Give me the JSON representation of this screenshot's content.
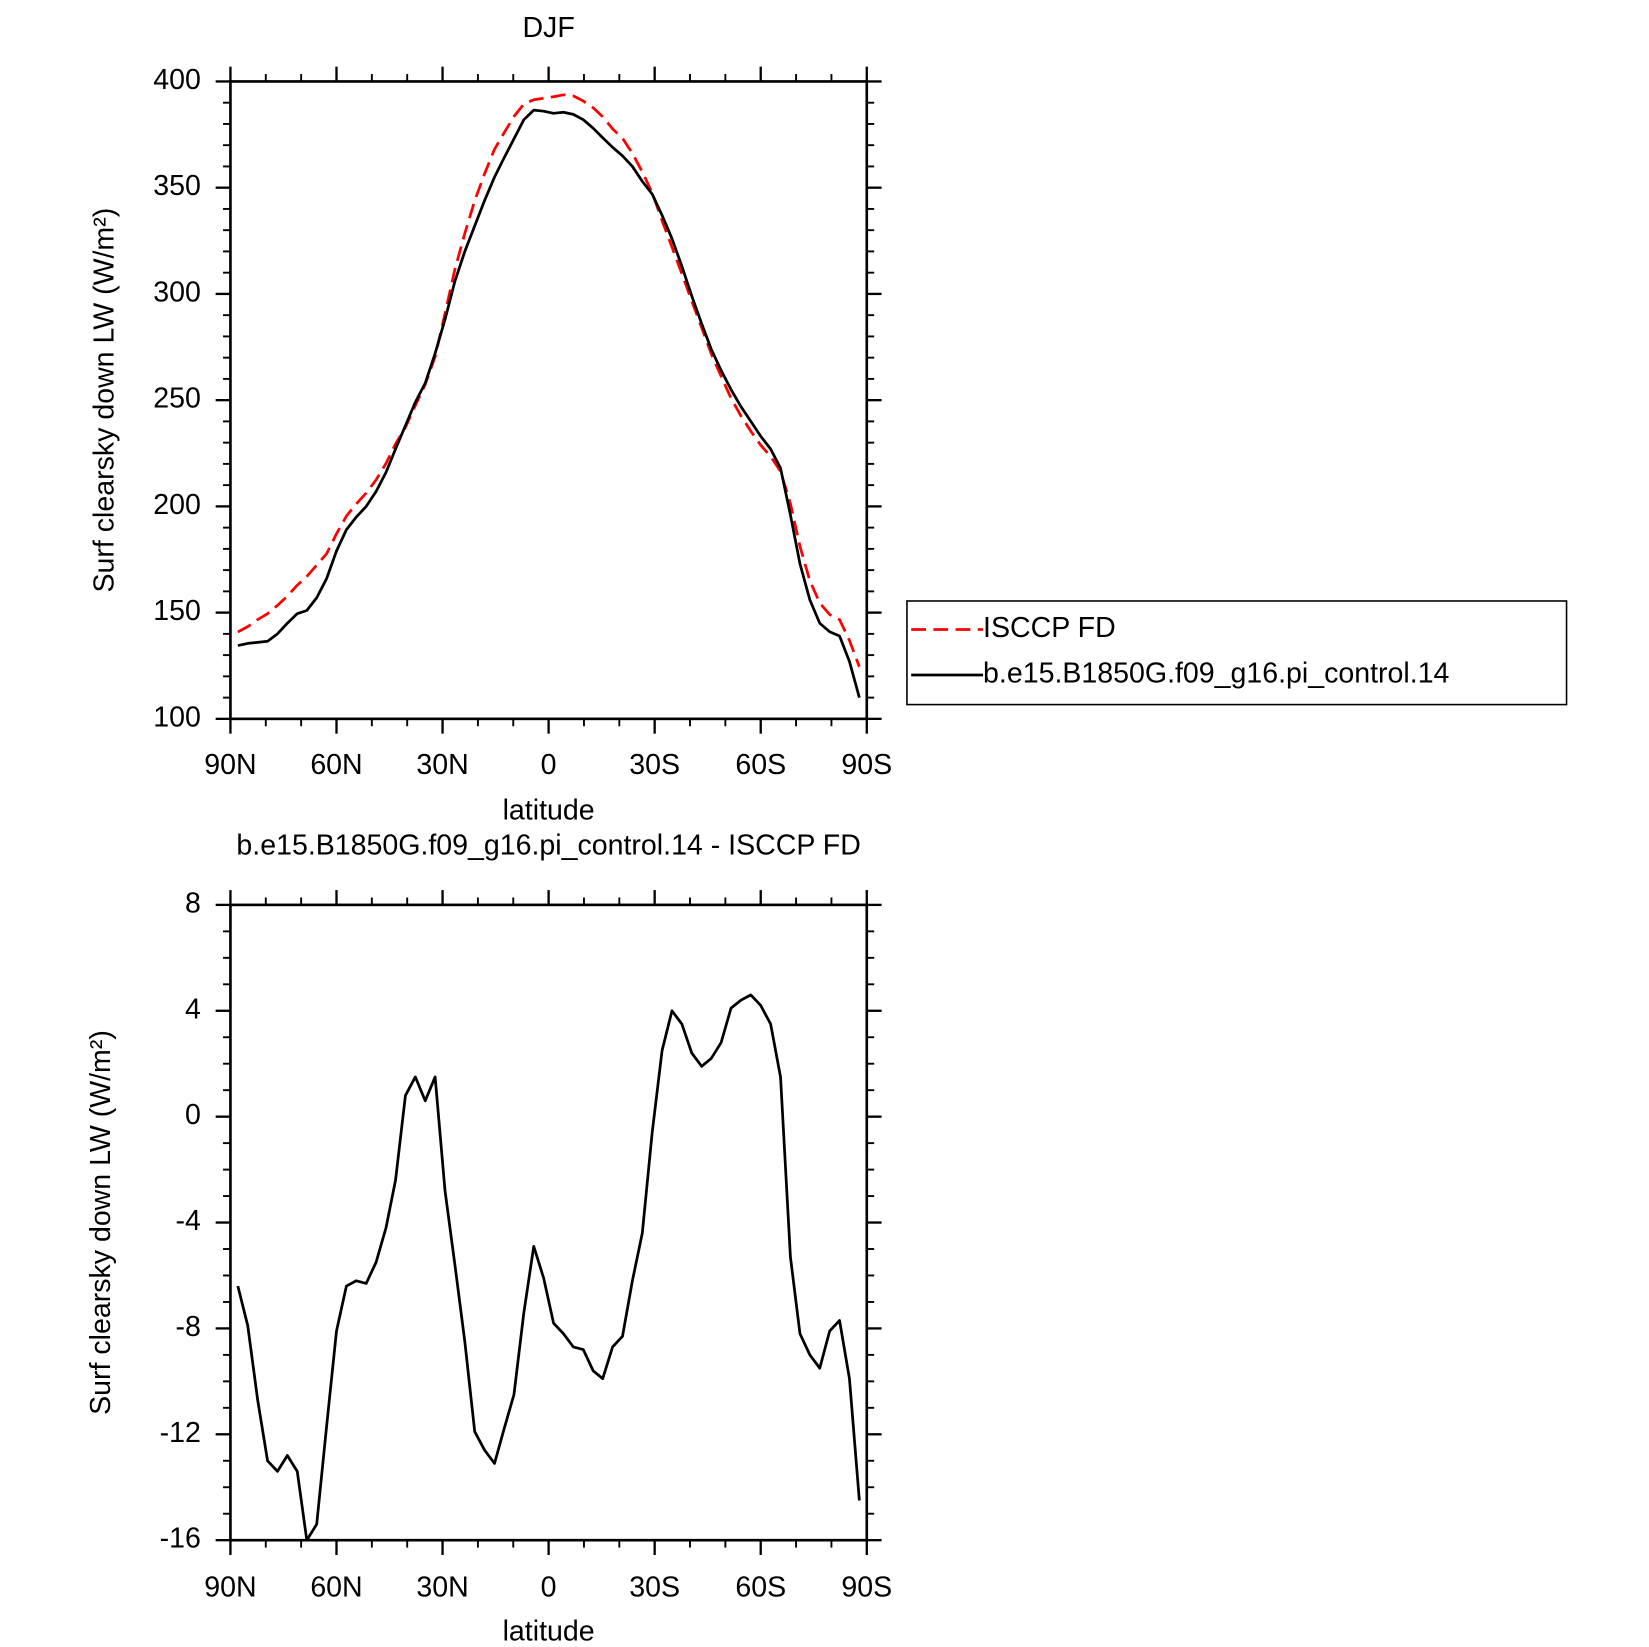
{
  "chart_data": [
    {
      "type": "line",
      "title": "DJF",
      "x_label": "latitude",
      "y_label": "Surf clearsky down LW (W/m²)",
      "x": [
        87.9,
        85.1,
        82.3,
        79.5,
        76.7,
        73.9,
        71.1,
        68.4,
        65.6,
        62.8,
        60.0,
        57.2,
        54.4,
        51.6,
        48.8,
        46.0,
        43.3,
        40.5,
        37.7,
        34.9,
        32.1,
        29.3,
        26.5,
        23.7,
        20.9,
        18.1,
        15.3,
        12.6,
        9.8,
        7.0,
        4.2,
        1.4,
        -1.4,
        -4.2,
        -7.0,
        -9.8,
        -12.6,
        -15.3,
        -18.1,
        -20.9,
        -23.7,
        -26.5,
        -29.3,
        -32.1,
        -34.9,
        -37.7,
        -40.5,
        -43.3,
        -46.0,
        -48.8,
        -51.6,
        -54.4,
        -57.2,
        -60.0,
        -62.8,
        -65.6,
        -68.4,
        -71.1,
        -73.9,
        -76.7,
        -79.5,
        -82.3,
        -85.1,
        -87.9
      ],
      "series": [
        {
          "name": "ISCCP FD",
          "color": "#ff0000",
          "line_style": "dashed",
          "values": [
            140.9,
            143.4,
            146.7,
            149.5,
            153.4,
            157.8,
            162.9,
            167,
            172.4,
            177.7,
            187.1,
            195.4,
            201.2,
            206.3,
            212.5,
            220.2,
            229.4,
            237.2,
            247.5,
            257.4,
            270.5,
            290.8,
            311.6,
            328.5,
            343.9,
            356.6,
            368.1,
            375.8,
            383.5,
            389.4,
            391.4,
            392.1,
            392.8,
            393.7,
            393.2,
            390.8,
            387.6,
            383.4,
            377.7,
            373.3,
            366.2,
            357.4,
            347.6,
            334.5,
            322,
            309.5,
            296.6,
            284.1,
            271.8,
            261.2,
            250.9,
            242.6,
            235.4,
            228.8,
            223.5,
            216.5,
            201.3,
            181.2,
            165,
            154.5,
            149.1,
            146.7,
            136.9,
            124.5
          ]
        },
        {
          "name": "b.e15.B1850G.f09_g16.pi_control.14",
          "color": "#000000",
          "line_style": "solid",
          "values": [
            134.5,
            135.5,
            136,
            136.5,
            140,
            145,
            149.5,
            151,
            157,
            166,
            179,
            189,
            195,
            200,
            207,
            216,
            227,
            238,
            249,
            258,
            272,
            288,
            306,
            320,
            332,
            344,
            355,
            364,
            373,
            382,
            386.5,
            386,
            385,
            385.5,
            384.5,
            382,
            378,
            373.5,
            369,
            365,
            360,
            353,
            347,
            337,
            326,
            313,
            299,
            286,
            274,
            264,
            255,
            247,
            240,
            233,
            227,
            218,
            196,
            173,
            156,
            145,
            141,
            139,
            127,
            110
          ]
        }
      ],
      "xlim": [
        90,
        -90
      ],
      "xticks": [
        {
          "value": 90,
          "label": "90N"
        },
        {
          "value": 60,
          "label": "60N"
        },
        {
          "value": 30,
          "label": "30N"
        },
        0,
        {
          "value": -30,
          "label": "30S"
        },
        {
          "value": -60,
          "label": "60S"
        },
        {
          "value": -90,
          "label": "90S"
        }
      ],
      "ylim": [
        100,
        400
      ],
      "yticks": [
        100,
        150,
        200,
        250,
        300,
        350,
        400
      ],
      "legend": "right"
    },
    {
      "type": "line",
      "title": "b.e15.B1850G.f09_g16.pi_control.14 - ISCCP FD",
      "x_label": "latitude",
      "y_label": "Surf clearsky down LW (W/m²)",
      "x": [
        87.9,
        85.1,
        82.3,
        79.5,
        76.7,
        73.9,
        71.1,
        68.4,
        65.6,
        62.8,
        60.0,
        57.2,
        54.4,
        51.6,
        48.8,
        46.0,
        43.3,
        40.5,
        37.7,
        34.9,
        32.1,
        29.3,
        26.5,
        23.7,
        20.9,
        18.1,
        15.3,
        12.6,
        9.8,
        7.0,
        4.2,
        1.4,
        -1.4,
        -4.2,
        -7.0,
        -9.8,
        -12.6,
        -15.3,
        -18.1,
        -20.9,
        -23.7,
        -26.5,
        -29.3,
        -32.1,
        -34.9,
        -37.7,
        -40.5,
        -43.3,
        -46.0,
        -48.8,
        -51.6,
        -54.4,
        -57.2,
        -60.0,
        -62.8,
        -65.6,
        -68.4,
        -71.1,
        -73.9,
        -76.7,
        -79.5,
        -82.3,
        -85.1,
        -87.9
      ],
      "series": [
        {
          "color": "#000000",
          "line_style": "solid",
          "values": [
            -6.4,
            -7.9,
            -10.7,
            -13.0,
            -13.4,
            -12.8,
            -13.4,
            -16.0,
            -15.4,
            -11.7,
            -8.1,
            -6.4,
            -6.2,
            -6.3,
            -5.5,
            -4.2,
            -2.4,
            0.8,
            1.5,
            0.6,
            1.5,
            -2.8,
            -5.6,
            -8.5,
            -11.9,
            -12.6,
            -13.1,
            -11.8,
            -10.5,
            -7.4,
            -4.9,
            -6.1,
            -7.8,
            -8.2,
            -8.7,
            -8.8,
            -9.6,
            -9.9,
            -8.7,
            -8.3,
            -6.2,
            -4.4,
            -0.6,
            2.5,
            4.0,
            3.5,
            2.4,
            1.9,
            2.2,
            2.8,
            4.1,
            4.4,
            4.6,
            4.2,
            3.5,
            1.5,
            -5.3,
            -8.2,
            -9.0,
            -9.5,
            -8.1,
            -7.7,
            -9.9,
            -14.5
          ]
        }
      ],
      "xlim": [
        90,
        -90
      ],
      "xticks": [
        {
          "value": 90,
          "label": "90N"
        },
        {
          "value": 60,
          "label": "60N"
        },
        {
          "value": 30,
          "label": "30N"
        },
        0,
        {
          "value": -30,
          "label": "30S"
        },
        {
          "value": -60,
          "label": "60S"
        },
        {
          "value": -90,
          "label": "90S"
        }
      ],
      "ylim": [
        -16,
        8
      ],
      "yticks": [
        -16,
        -12,
        -8,
        -4,
        0,
        4,
        8
      ]
    }
  ]
}
